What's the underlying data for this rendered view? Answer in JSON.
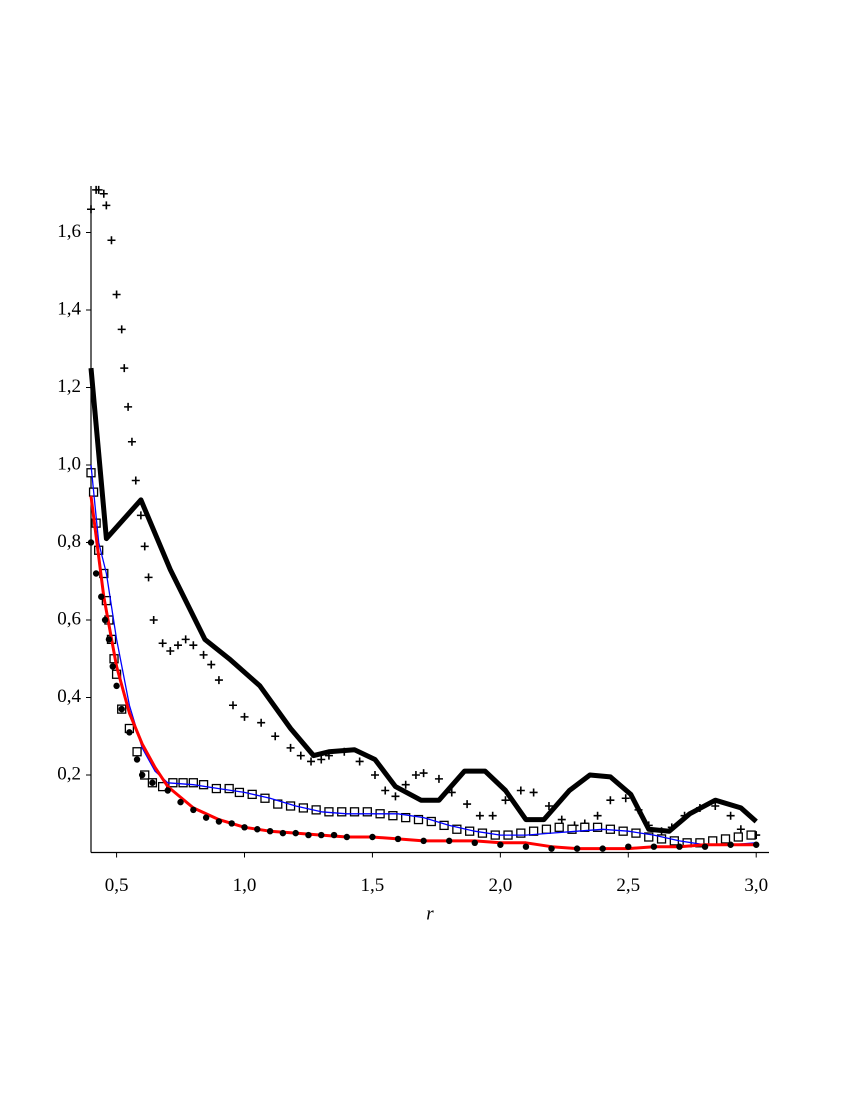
{
  "chart_data": {
    "type": "line",
    "x_label": "r",
    "xlim": [
      0.4,
      3.05
    ],
    "ylim": [
      0,
      1.72
    ],
    "xticks": [
      {
        "value": 0.5,
        "label": "0,5"
      },
      {
        "value": 1.0,
        "label": "1,0"
      },
      {
        "value": 1.5,
        "label": "1,5"
      },
      {
        "value": 2.0,
        "label": "2,0"
      },
      {
        "value": 2.5,
        "label": "2,5"
      },
      {
        "value": 3.0,
        "label": "3,0"
      }
    ],
    "yticks": [
      {
        "value": 0.2,
        "label": "0,2"
      },
      {
        "value": 0.4,
        "label": "0,4"
      },
      {
        "value": 0.6,
        "label": "0,6"
      },
      {
        "value": 0.8,
        "label": "0,8"
      },
      {
        "value": 1.0,
        "label": "1,0"
      },
      {
        "value": 1.2,
        "label": "1,2"
      },
      {
        "value": 1.4,
        "label": "1,4"
      },
      {
        "value": 1.6,
        "label": "1,6"
      }
    ],
    "series": [
      {
        "color": "#000000",
        "style": "line",
        "linewidth": 5,
        "x": [
          0.4,
          0.46,
          0.595,
          0.71,
          0.845,
          0.94,
          1.06,
          1.18,
          1.27,
          1.33,
          1.43,
          1.51,
          1.59,
          1.69,
          1.76,
          1.86,
          1.94,
          2.02,
          2.1,
          2.17,
          2.27,
          2.35,
          2.43,
          2.51,
          2.58,
          2.66,
          2.74,
          2.84,
          2.94,
          3.0
        ],
        "values": [
          1.25,
          0.81,
          0.91,
          0.73,
          0.55,
          0.5,
          0.43,
          0.32,
          0.25,
          0.26,
          0.265,
          0.24,
          0.17,
          0.135,
          0.135,
          0.21,
          0.21,
          0.16,
          0.085,
          0.085,
          0.16,
          0.2,
          0.195,
          0.15,
          0.06,
          0.055,
          0.1,
          0.135,
          0.115,
          0.08
        ]
      },
      {
        "color": "#000000",
        "style": "plus",
        "x": [
          0.4,
          0.42,
          0.43,
          0.45,
          0.46,
          0.48,
          0.5,
          0.52,
          0.53,
          0.545,
          0.56,
          0.575,
          0.595,
          0.61,
          0.625,
          0.645,
          0.68,
          0.71,
          0.74,
          0.77,
          0.8,
          0.84,
          0.87,
          0.9,
          0.955,
          1.0,
          1.065,
          1.12,
          1.18,
          1.22,
          1.26,
          1.3,
          1.33,
          1.39,
          1.45,
          1.51,
          1.55,
          1.59,
          1.63,
          1.67,
          1.7,
          1.76,
          1.81,
          1.87,
          1.92,
          1.97,
          2.02,
          2.08,
          2.13,
          2.19,
          2.24,
          2.29,
          2.33,
          2.38,
          2.43,
          2.49,
          2.54,
          2.58,
          2.63,
          2.67,
          2.72,
          2.78,
          2.84,
          2.9,
          2.94,
          3.0
        ],
        "values": [
          1.66,
          1.71,
          1.71,
          1.7,
          1.67,
          1.58,
          1.44,
          1.35,
          1.25,
          1.15,
          1.06,
          0.96,
          0.87,
          0.79,
          0.71,
          0.6,
          0.54,
          0.52,
          0.535,
          0.55,
          0.535,
          0.51,
          0.485,
          0.445,
          0.38,
          0.35,
          0.335,
          0.3,
          0.27,
          0.25,
          0.235,
          0.24,
          0.25,
          0.26,
          0.235,
          0.2,
          0.16,
          0.145,
          0.175,
          0.2,
          0.205,
          0.19,
          0.155,
          0.125,
          0.095,
          0.095,
          0.135,
          0.16,
          0.155,
          0.12,
          0.085,
          0.07,
          0.075,
          0.095,
          0.135,
          0.14,
          0.11,
          0.07,
          0.055,
          0.065,
          0.095,
          0.115,
          0.12,
          0.095,
          0.06,
          0.045
        ]
      },
      {
        "color": "#000000",
        "style": "square",
        "x": [
          0.4,
          0.41,
          0.42,
          0.43,
          0.45,
          0.46,
          0.47,
          0.48,
          0.49,
          0.5,
          0.52,
          0.55,
          0.58,
          0.61,
          0.64,
          0.68,
          0.72,
          0.76,
          0.8,
          0.84,
          0.89,
          0.94,
          0.98,
          1.03,
          1.08,
          1.13,
          1.18,
          1.23,
          1.28,
          1.33,
          1.38,
          1.43,
          1.48,
          1.53,
          1.58,
          1.63,
          1.68,
          1.73,
          1.78,
          1.83,
          1.88,
          1.93,
          1.98,
          2.03,
          2.08,
          2.13,
          2.18,
          2.23,
          2.28,
          2.33,
          2.38,
          2.43,
          2.48,
          2.53,
          2.58,
          2.63,
          2.68,
          2.73,
          2.78,
          2.83,
          2.88,
          2.93,
          2.98
        ],
        "values": [
          0.98,
          0.93,
          0.85,
          0.78,
          0.72,
          0.65,
          0.6,
          0.55,
          0.5,
          0.46,
          0.37,
          0.32,
          0.26,
          0.2,
          0.18,
          0.17,
          0.18,
          0.18,
          0.18,
          0.175,
          0.165,
          0.165,
          0.155,
          0.15,
          0.14,
          0.125,
          0.12,
          0.115,
          0.11,
          0.105,
          0.105,
          0.105,
          0.105,
          0.1,
          0.095,
          0.09,
          0.085,
          0.08,
          0.07,
          0.06,
          0.055,
          0.05,
          0.045,
          0.045,
          0.05,
          0.055,
          0.06,
          0.065,
          0.06,
          0.065,
          0.065,
          0.06,
          0.055,
          0.05,
          0.04,
          0.035,
          0.03,
          0.025,
          0.025,
          0.03,
          0.035,
          0.04,
          0.045
        ]
      },
      {
        "color": "#0000ff",
        "style": "line",
        "linewidth": 1.3,
        "x": [
          0.4,
          0.43,
          0.46,
          0.5,
          0.55,
          0.6,
          0.65,
          0.7,
          0.8,
          0.9,
          1.0,
          1.1,
          1.2,
          1.3,
          1.4,
          1.5,
          1.6,
          1.7,
          1.8,
          1.9,
          2.0,
          2.1,
          2.2,
          2.3,
          2.4,
          2.5,
          2.6,
          2.7,
          2.8,
          2.9,
          3.0
        ],
        "values": [
          1.0,
          0.8,
          0.72,
          0.55,
          0.38,
          0.27,
          0.21,
          0.18,
          0.175,
          0.165,
          0.155,
          0.14,
          0.12,
          0.105,
          0.1,
          0.1,
          0.1,
          0.09,
          0.07,
          0.055,
          0.045,
          0.045,
          0.05,
          0.055,
          0.06,
          0.055,
          0.045,
          0.03,
          0.02,
          0.02,
          0.025
        ]
      },
      {
        "color": "#ff0000",
        "style": "line",
        "linewidth": 3,
        "x": [
          0.4,
          0.45,
          0.5,
          0.55,
          0.6,
          0.65,
          0.7,
          0.8,
          0.9,
          1.0,
          1.1,
          1.2,
          1.3,
          1.4,
          1.5,
          1.6,
          1.7,
          1.8,
          1.9,
          2.0,
          2.1,
          2.2,
          2.3,
          2.4,
          2.5,
          2.6,
          2.7,
          2.8,
          2.9,
          3.0
        ],
        "values": [
          0.92,
          0.66,
          0.48,
          0.36,
          0.28,
          0.22,
          0.17,
          0.115,
          0.085,
          0.065,
          0.055,
          0.05,
          0.045,
          0.04,
          0.04,
          0.035,
          0.03,
          0.03,
          0.03,
          0.025,
          0.025,
          0.015,
          0.01,
          0.01,
          0.01,
          0.015,
          0.015,
          0.02,
          0.02,
          0.02
        ]
      },
      {
        "color": "#000000",
        "style": "circle",
        "x": [
          0.4,
          0.42,
          0.44,
          0.455,
          0.47,
          0.485,
          0.5,
          0.52,
          0.55,
          0.58,
          0.6,
          0.64,
          0.7,
          0.75,
          0.8,
          0.85,
          0.9,
          0.95,
          1.0,
          1.05,
          1.1,
          1.15,
          1.2,
          1.25,
          1.3,
          1.35,
          1.4,
          1.5,
          1.6,
          1.7,
          1.8,
          1.9,
          2.0,
          2.1,
          2.2,
          2.3,
          2.4,
          2.5,
          2.6,
          2.7,
          2.8,
          2.9,
          3.0
        ],
        "values": [
          0.8,
          0.72,
          0.66,
          0.6,
          0.55,
          0.48,
          0.43,
          0.37,
          0.31,
          0.24,
          0.2,
          0.18,
          0.16,
          0.13,
          0.11,
          0.09,
          0.08,
          0.075,
          0.065,
          0.06,
          0.055,
          0.05,
          0.05,
          0.045,
          0.045,
          0.045,
          0.04,
          0.04,
          0.035,
          0.03,
          0.03,
          0.025,
          0.02,
          0.015,
          0.01,
          0.01,
          0.01,
          0.015,
          0.015,
          0.015,
          0.015,
          0.02,
          0.02
        ]
      }
    ]
  }
}
